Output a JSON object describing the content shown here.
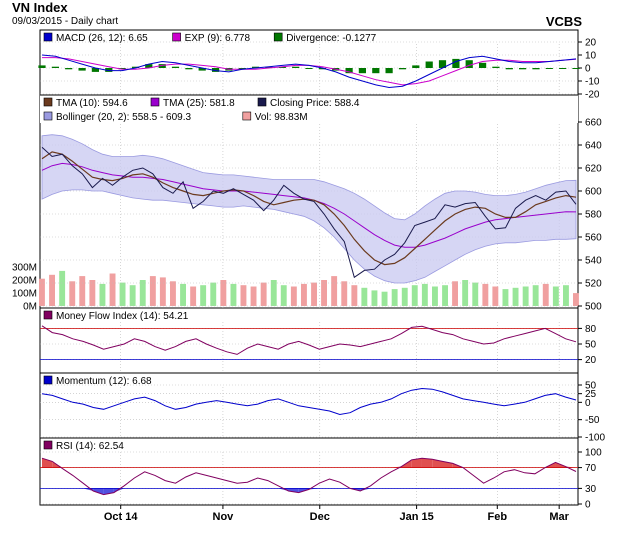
{
  "header": {
    "title": "VN Index",
    "subtitle": "09/03/2015 - Daily chart",
    "brand": "VCBS"
  },
  "colors": {
    "macd": "#0000cc",
    "exp": "#cc00cc",
    "divergence": "#007700",
    "tma10": "#6b3a1e",
    "tma25": "#9900cc",
    "close": "#1a1a4d",
    "bollinger_fill": "#c8c8f0",
    "bollinger_line": "#9a9ae0",
    "vol_up": "#99e699",
    "vol_down": "#f0a0a0",
    "mfi": "#800060",
    "mfi_red": "#cc0000",
    "mfi_blue": "#0000cc",
    "momentum": "#0000cc",
    "rsi": "#800060",
    "rsi_fill_hi": "#e05050",
    "rsi_fill_lo": "#5050e0",
    "grid": "#bbbbbb"
  },
  "chart_data": [
    {
      "id": "macd",
      "type": "line",
      "legend": [
        {
          "label": "MACD (26, 12): 6.65",
          "color": "#0000cc"
        },
        {
          "label": "EXP (9): 6.778",
          "color": "#cc00cc"
        },
        {
          "label": "Divergence: -0.1277",
          "color": "#007700"
        }
      ],
      "ylim": [
        -20,
        20
      ],
      "yticks": [
        "20",
        "10",
        "0",
        "-10",
        "-20"
      ],
      "series": [
        {
          "key": "macd",
          "values": [
            10,
            9,
            6,
            3,
            0,
            -2,
            -2,
            0,
            3,
            5,
            4,
            2,
            0,
            -2,
            -3,
            -1,
            0,
            1,
            2,
            3,
            2,
            0,
            -3,
            -7,
            -10,
            -13,
            -15,
            -14,
            -10,
            -5,
            0,
            5,
            8,
            9,
            7,
            5,
            4,
            4,
            5,
            6,
            7
          ]
        },
        {
          "key": "exp",
          "values": [
            8,
            8,
            7,
            5,
            3,
            1,
            -1,
            -1,
            0,
            2,
            3,
            3,
            2,
            1,
            -1,
            -1,
            -1,
            0,
            1,
            2,
            2,
            1,
            -1,
            -3,
            -6,
            -9,
            -11,
            -13,
            -12,
            -10,
            -6,
            -2,
            2,
            5,
            6,
            6,
            5,
            5,
            5,
            6,
            6.8
          ]
        },
        {
          "key": "divergence",
          "values": [
            2,
            1,
            -1,
            -2,
            -3,
            -3,
            -1,
            1,
            3,
            3,
            1,
            -1,
            -2,
            -3,
            -2,
            0,
            1,
            1,
            1,
            1,
            0,
            -1,
            -2,
            -4,
            -4,
            -4,
            -4,
            -1,
            2,
            5,
            6,
            7,
            6,
            4,
            1,
            -1,
            -1,
            -1,
            0,
            0,
            -0.13
          ]
        }
      ]
    },
    {
      "id": "price",
      "type": "line",
      "legend": [
        {
          "label": "TMA (10): 594.6",
          "color": "#6b3a1e"
        },
        {
          "label": "TMA (25): 581.8",
          "color": "#9900cc"
        },
        {
          "label": "Closing Price: 588.4",
          "color": "#1a1a4d"
        },
        {
          "label": "Bollinger (20, 2): 558.5 - 609.3",
          "color": "#9a9ae0"
        },
        {
          "label": "Vol: 98.83M",
          "color": "#f0a0a0"
        }
      ],
      "ylim": [
        500,
        660
      ],
      "yticks": [
        "660",
        "640",
        "620",
        "600",
        "580",
        "560",
        "540",
        "520",
        "500"
      ],
      "vol_ylim": [
        0,
        400
      ],
      "vol_ticks": [
        "300M",
        "200M",
        "100M",
        "0M"
      ],
      "series": [
        {
          "key": "close",
          "values": [
            638,
            630,
            632,
            622,
            615,
            603,
            611,
            605,
            612,
            618,
            620,
            615,
            603,
            598,
            608,
            585,
            591,
            600,
            598,
            602,
            597,
            592,
            583,
            592,
            605,
            598,
            593,
            591,
            580,
            567,
            556,
            525,
            531,
            532,
            540,
            545,
            555,
            570,
            573,
            576,
            588,
            586,
            589,
            590,
            578,
            567,
            568,
            585,
            592,
            596,
            592,
            599,
            600,
            588.4
          ]
        },
        {
          "key": "tma10",
          "values": [
            628,
            634,
            632,
            626,
            619,
            612,
            610,
            609,
            611,
            614,
            615,
            612,
            607,
            603,
            600,
            597,
            596,
            598,
            600,
            601,
            600,
            596,
            591,
            588,
            590,
            592,
            593,
            592,
            588,
            580,
            570,
            558,
            548,
            540,
            536,
            537,
            542,
            550,
            558,
            566,
            574,
            580,
            584,
            586,
            585,
            580,
            577,
            577,
            582,
            588,
            591,
            594,
            596,
            594.6
          ]
        },
        {
          "key": "tma25",
          "values": [
            618,
            622,
            624,
            623,
            621,
            618,
            616,
            614,
            613,
            612,
            612,
            611,
            610,
            608,
            606,
            604,
            602,
            601,
            600,
            600,
            600,
            599,
            598,
            597,
            596,
            595,
            594,
            592,
            589,
            585,
            580,
            574,
            568,
            562,
            557,
            553,
            551,
            551,
            553,
            556,
            559,
            563,
            567,
            570,
            573,
            575,
            576,
            577,
            578,
            579,
            580,
            581,
            582,
            581.8
          ]
        },
        {
          "key": "boll_up",
          "values": [
            648,
            649,
            648,
            645,
            641,
            636,
            632,
            630,
            630,
            630,
            631,
            630,
            628,
            625,
            622,
            619,
            616,
            615,
            614,
            614,
            613,
            612,
            611,
            610,
            610,
            610,
            610,
            610,
            608,
            605,
            602,
            598,
            593,
            587,
            581,
            576,
            575,
            580,
            587,
            593,
            598,
            600,
            600,
            599,
            597,
            596,
            596,
            597,
            599,
            602,
            605,
            607,
            609,
            609.3
          ]
        },
        {
          "key": "boll_lo",
          "values": [
            593,
            597,
            600,
            601,
            601,
            600,
            600,
            598,
            596,
            594,
            593,
            592,
            592,
            591,
            590,
            589,
            588,
            587,
            586,
            586,
            587,
            586,
            585,
            584,
            582,
            580,
            578,
            574,
            568,
            560,
            550,
            540,
            532,
            526,
            522,
            520,
            520,
            522,
            525,
            530,
            535,
            540,
            545,
            549,
            552,
            554,
            555,
            555,
            556,
            557,
            557,
            558,
            558,
            558.5
          ]
        },
        {
          "key": "volume",
          "values": [
            210,
            240,
            270,
            190,
            230,
            200,
            170,
            250,
            180,
            160,
            200,
            230,
            220,
            190,
            170,
            150,
            160,
            180,
            200,
            170,
            160,
            150,
            180,
            200,
            160,
            150,
            170,
            180,
            200,
            230,
            190,
            160,
            140,
            120,
            110,
            130,
            140,
            160,
            170,
            150,
            160,
            190,
            200,
            180,
            170,
            150,
            130,
            140,
            150,
            160,
            170,
            150,
            160,
            99
          ]
        },
        {
          "key": "vol_up",
          "values": [
            0,
            0,
            1,
            0,
            0,
            0,
            1,
            0,
            1,
            1,
            1,
            0,
            0,
            0,
            1,
            0,
            1,
            1,
            0,
            1,
            0,
            0,
            0,
            1,
            1,
            0,
            0,
            0,
            0,
            0,
            0,
            0,
            1,
            1,
            1,
            1,
            1,
            1,
            1,
            1,
            1,
            0,
            1,
            1,
            0,
            0,
            1,
            1,
            1,
            1,
            0,
            1,
            1,
            0
          ]
        }
      ]
    },
    {
      "id": "mfi",
      "type": "line",
      "legend": [
        {
          "label": "Money Flow Index (14): 54.21",
          "color": "#800060"
        }
      ],
      "ylim": [
        0,
        100
      ],
      "yticks": [
        "80",
        "50",
        "20"
      ],
      "levels": [
        80,
        20
      ],
      "series": [
        {
          "key": "mfi",
          "values": [
            85,
            72,
            68,
            60,
            55,
            48,
            40,
            45,
            50,
            60,
            55,
            45,
            38,
            45,
            55,
            60,
            50,
            42,
            35,
            30,
            42,
            50,
            45,
            40,
            50,
            55,
            48,
            40,
            45,
            50,
            48,
            45,
            50,
            55,
            60,
            70,
            82,
            84,
            78,
            72,
            68,
            60,
            55,
            50,
            52,
            60,
            65,
            70,
            75,
            80,
            70,
            60,
            54.21
          ]
        }
      ]
    },
    {
      "id": "momentum",
      "type": "line",
      "legend": [
        {
          "label": "Momentum (12): 6.68",
          "color": "#0000cc"
        }
      ],
      "ylim": [
        -100,
        50
      ],
      "yticks": [
        "50",
        "25",
        "0",
        "-50",
        "-100"
      ],
      "series": [
        {
          "key": "momentum",
          "values": [
            25,
            20,
            10,
            0,
            -5,
            -15,
            -20,
            -10,
            0,
            10,
            15,
            5,
            -10,
            -20,
            -15,
            -5,
            0,
            5,
            0,
            -5,
            -10,
            -5,
            5,
            10,
            0,
            -10,
            -15,
            -20,
            -25,
            -35,
            -30,
            -15,
            -5,
            0,
            10,
            25,
            35,
            40,
            38,
            30,
            20,
            10,
            5,
            0,
            -5,
            -10,
            -5,
            0,
            10,
            20,
            25,
            15,
            6.68
          ]
        }
      ]
    },
    {
      "id": "rsi",
      "type": "line",
      "legend": [
        {
          "label": "RSI (14): 62.54",
          "color": "#800060"
        }
      ],
      "ylim": [
        0,
        100
      ],
      "yticks": [
        "100",
        "70",
        "30",
        "0"
      ],
      "levels": [
        70,
        30
      ],
      "series": [
        {
          "key": "rsi",
          "values": [
            88,
            82,
            68,
            55,
            40,
            25,
            18,
            22,
            35,
            50,
            62,
            55,
            45,
            40,
            52,
            60,
            55,
            50,
            45,
            40,
            42,
            50,
            45,
            35,
            25,
            22,
            28,
            40,
            48,
            42,
            30,
            25,
            35,
            50,
            62,
            72,
            85,
            88,
            86,
            82,
            78,
            70,
            55,
            40,
            50,
            62,
            66,
            60,
            58,
            70,
            80,
            72,
            62.54
          ]
        }
      ]
    }
  ],
  "x_axis": {
    "labels": [
      "Oct 14",
      "Nov",
      "Dec",
      "Jan 15",
      "Feb",
      "Mar"
    ],
    "positions": [
      0.15,
      0.34,
      0.52,
      0.7,
      0.85,
      0.965
    ]
  }
}
